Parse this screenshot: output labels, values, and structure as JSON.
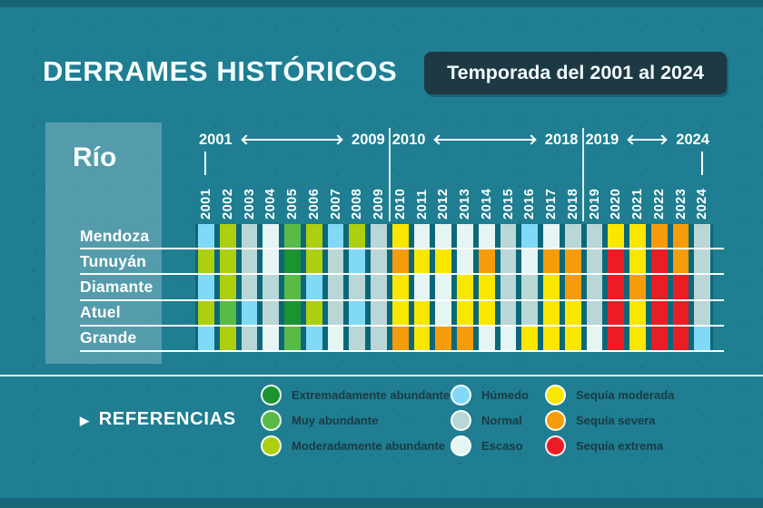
{
  "title": "DERRAMES HISTÓRICOS",
  "badge_label": "Temporada del 2001 al 2024",
  "rio_header": "Río",
  "references_label": "REFERENCIAS",
  "bold_years": [
    "2023",
    "2024"
  ],
  "timeline_groups": [
    {
      "start": "2001",
      "end": "2009",
      "cols": 9
    },
    {
      "start": "2010",
      "end": "2018",
      "cols": 9
    },
    {
      "start": "2019",
      "end": "2024",
      "cols": 6
    }
  ],
  "categories": {
    "EA": {
      "label": "Extremadamente abundante",
      "color": "#1a9430"
    },
    "MA": {
      "label": "Muy abundante",
      "color": "#58bb47"
    },
    "MOD": {
      "label": "Moderadamente abundante",
      "color": "#accf10"
    },
    "HUM": {
      "label": "Húmedo",
      "color": "#7fd9f7"
    },
    "NOR": {
      "label": "Normal",
      "color": "#b8d7d6"
    },
    "ESC": {
      "label": "Escaso",
      "color": "#e4f5f4"
    },
    "SM": {
      "label": "Sequía moderada",
      "color": "#f9e700"
    },
    "SS": {
      "label": "Sequía severa",
      "color": "#f69c0a"
    },
    "SE": {
      "label": "Sequía extrema",
      "color": "#ea1d25"
    }
  },
  "legend_columns": [
    [
      "EA",
      "MA",
      "MOD"
    ],
    [
      "HUM",
      "NOR",
      "ESC"
    ],
    [
      "SM",
      "SS",
      "SE"
    ]
  ],
  "colors": {
    "background": "#1f7e91",
    "badge_bg": "#1d3944",
    "panel_overlay": "rgba(255,255,255,0.24)",
    "grid_gap": "#0c6879",
    "legend_text": "#1b3a45",
    "line": "#ffffff"
  },
  "chart_data": {
    "type": "heatmap",
    "title": "DERRAMES HISTÓRICOS",
    "subtitle": "Temporada del 2001 al 2024",
    "x": [
      "2001",
      "2002",
      "2003",
      "2004",
      "2005",
      "2006",
      "2007",
      "2008",
      "2009",
      "2010",
      "2011",
      "2012",
      "2013",
      "2014",
      "2015",
      "2016",
      "2017",
      "2018",
      "2019",
      "2020",
      "2021",
      "2022",
      "2023",
      "2024"
    ],
    "y": [
      "Mendoza",
      "Tunuyán",
      "Diamante",
      "Atuel",
      "Grande"
    ],
    "rows": [
      {
        "name": "Mendoza",
        "values": [
          "HUM",
          "MOD",
          "NOR",
          "ESC",
          "MA",
          "MOD",
          "HUM",
          "MOD",
          "NOR",
          "SM",
          "ESC",
          "ESC",
          "ESC",
          "ESC",
          "NOR",
          "HUM",
          "ESC",
          "NOR",
          "NOR",
          "SM",
          "SM",
          "SS",
          "SS",
          "NOR"
        ]
      },
      {
        "name": "Tunuyán",
        "values": [
          "MOD",
          "MOD",
          "NOR",
          "ESC",
          "EA",
          "MOD",
          "NOR",
          "HUM",
          "NOR",
          "SS",
          "SM",
          "SM",
          "ESC",
          "SS",
          "NOR",
          "ESC",
          "SS",
          "SS",
          "NOR",
          "SE",
          "SM",
          "SE",
          "SS",
          "NOR"
        ]
      },
      {
        "name": "Diamante",
        "values": [
          "HUM",
          "MOD",
          "NOR",
          "NOR",
          "MA",
          "HUM",
          "NOR",
          "NOR",
          "NOR",
          "SM",
          "ESC",
          "ESC",
          "SM",
          "SM",
          "NOR",
          "NOR",
          "SM",
          "SS",
          "NOR",
          "SE",
          "SS",
          "SE",
          "SE",
          "NOR"
        ]
      },
      {
        "name": "Atuel",
        "values": [
          "MOD",
          "MA",
          "HUM",
          "NOR",
          "EA",
          "MOD",
          "NOR",
          "HUM",
          "NOR",
          "SM",
          "SM",
          "ESC",
          "SM",
          "SM",
          "NOR",
          "NOR",
          "SM",
          "SM",
          "NOR",
          "SE",
          "SM",
          "SE",
          "SE",
          "NOR"
        ]
      },
      {
        "name": "Grande",
        "values": [
          "HUM",
          "MOD",
          "NOR",
          "ESC",
          "MA",
          "HUM",
          "ESC",
          "NOR",
          "NOR",
          "SS",
          "SM",
          "SS",
          "SS",
          "ESC",
          "ESC",
          "SM",
          "SM",
          "SM",
          "ESC",
          "SE",
          "SM",
          "SE",
          "SE",
          "HUM"
        ]
      }
    ],
    "legend_position": "bottom"
  }
}
